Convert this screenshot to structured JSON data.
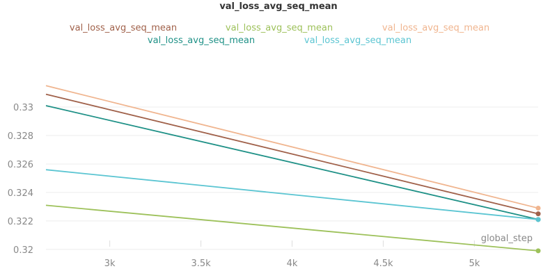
{
  "chart_data": {
    "type": "line",
    "title": "val_loss_avg_seq_mean",
    "xlabel": "global_step",
    "ylabel": "",
    "xlim": [
      2650,
      5350
    ],
    "ylim": [
      0.3197,
      0.3342
    ],
    "grid": true,
    "legend_position": "top",
    "x_ticks": [
      3000,
      3500,
      4000,
      4500,
      5000
    ],
    "x_tick_labels": [
      "3k",
      "3.5k",
      "4k",
      "4.5k",
      "5k"
    ],
    "y_ticks": [
      0.32,
      0.322,
      0.324,
      0.326,
      0.328,
      0.33
    ],
    "y_tick_labels": [
      "0.32",
      "0.322",
      "0.324",
      "0.326",
      "0.328",
      "0.33"
    ],
    "series": [
      {
        "name": "val_loss_avg_seq_mean",
        "color": "#a0614a",
        "x": [
          2650,
          5350
        ],
        "y": [
          0.3309,
          0.3225
        ]
      },
      {
        "name": "val_loss_avg_seq_mean",
        "color": "#9dc15a",
        "x": [
          2650,
          5350
        ],
        "y": [
          0.3231,
          0.3199
        ]
      },
      {
        "name": "val_loss_avg_seq_mean",
        "color": "#f0b58f",
        "x": [
          2650,
          5350
        ],
        "y": [
          0.3315,
          0.3229
        ]
      },
      {
        "name": "val_loss_avg_seq_mean",
        "color": "#1f9187",
        "x": [
          2650,
          5350
        ],
        "y": [
          0.3301,
          0.3221
        ]
      },
      {
        "name": "val_loss_avg_seq_mean",
        "color": "#5bc5d2",
        "x": [
          2650,
          5350
        ],
        "y": [
          0.3256,
          0.3221
        ]
      }
    ]
  }
}
